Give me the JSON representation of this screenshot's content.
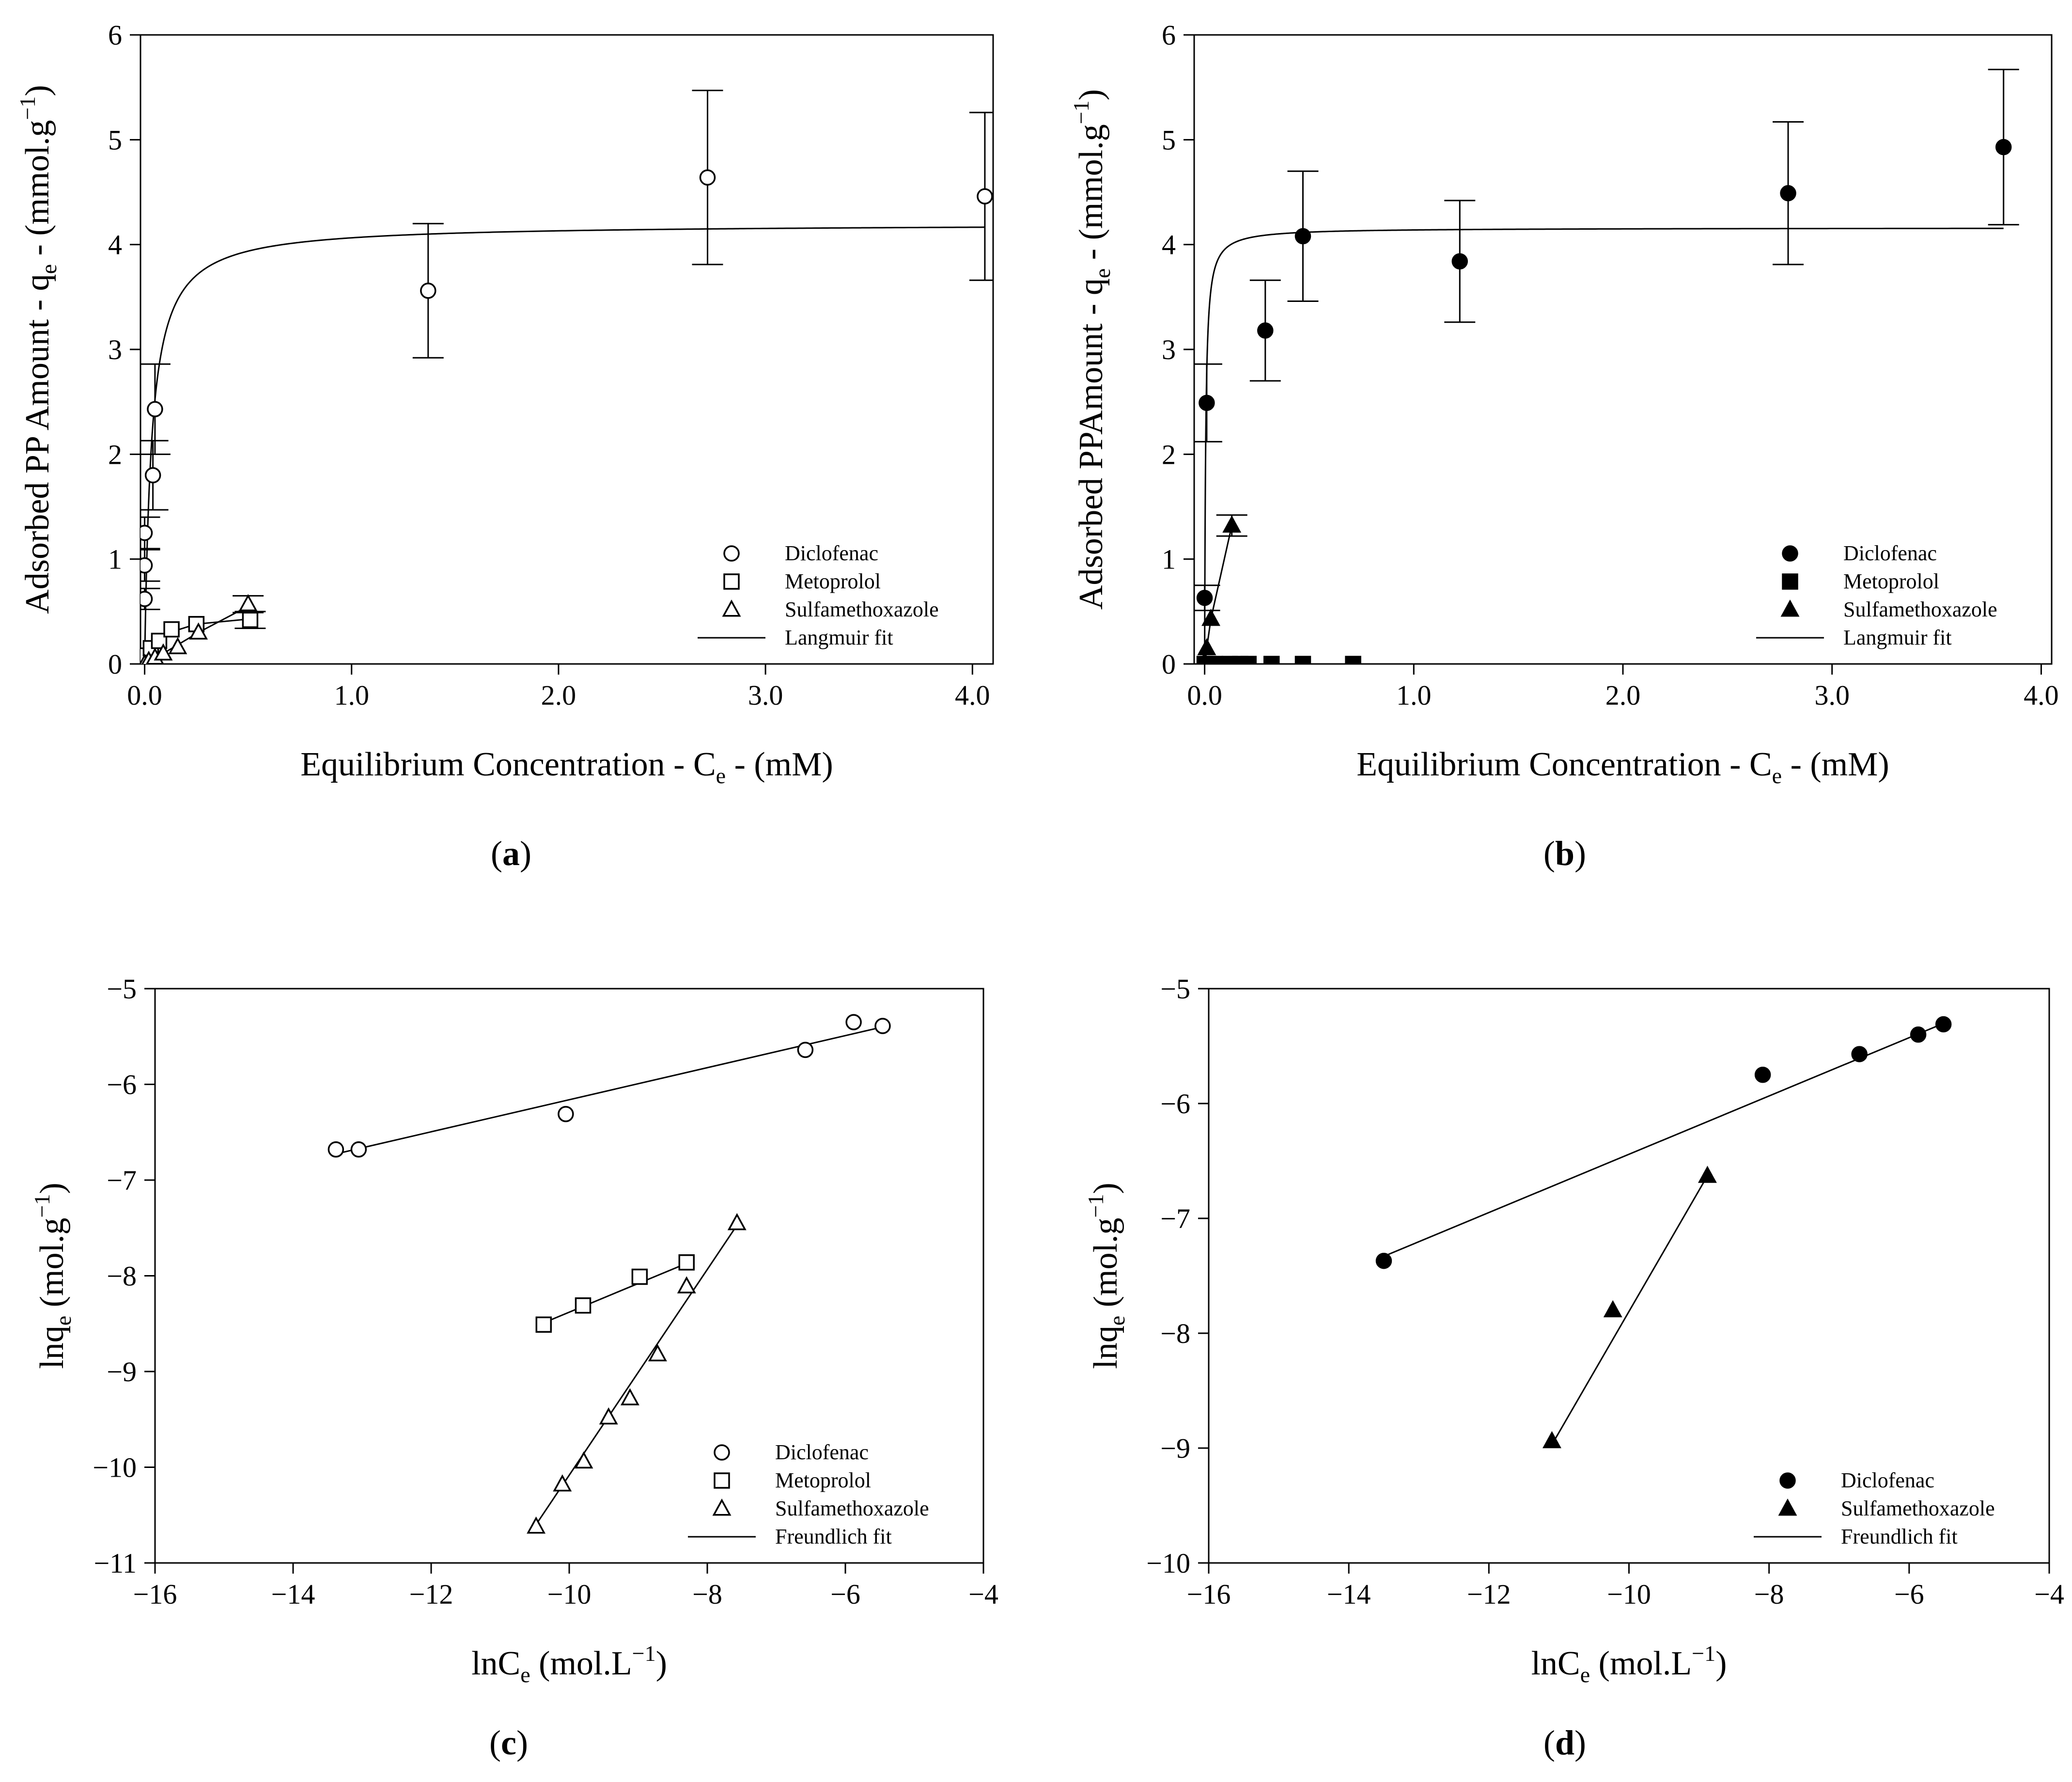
{
  "chart_data": [
    {
      "panel_label": "(a)",
      "type": "scatter",
      "xlabel": "Equilibrium Concentration - C",
      "xlabel_sub": "e",
      "xlabel_tail": " - (mM)",
      "ylabel": "Adsorbed PP Amount - q",
      "ylabel_sub": "e",
      "ylabel_tail": " - (mmol.g",
      "ylabel_sup": "−1",
      "ylabel_end": ")",
      "xlim": [
        -0.02,
        4.1
      ],
      "ylim": [
        0,
        6
      ],
      "xticks": [
        0.0,
        1.0,
        2.0,
        3.0,
        4.0
      ],
      "xtick_labels": [
        "0.0",
        "1.0",
        "2.0",
        "3.0",
        "4.0"
      ],
      "yticks": [
        0,
        1,
        2,
        3,
        4,
        5,
        6
      ],
      "ytick_labels": [
        "0",
        "1",
        "2",
        "3",
        "4",
        "5",
        "6"
      ],
      "legend_position": "bottom-right",
      "series": [
        {
          "name": "Diclofenac",
          "marker": "circle-open",
          "x": [
            0.0,
            0.0,
            0.0,
            0.04,
            0.05,
            1.37,
            2.72,
            4.06
          ],
          "y": [
            0.62,
            0.94,
            1.25,
            1.8,
            2.43,
            3.56,
            4.64,
            4.46
          ],
          "err": [
            0.1,
            0.15,
            0.15,
            0.33,
            0.43,
            0.64,
            0.83,
            0.8
          ]
        },
        {
          "name": "Metoprolol",
          "marker": "square-open",
          "x": [
            0.0,
            0.01,
            0.03,
            0.07,
            0.13,
            0.25,
            0.51
          ],
          "y": [
            0.02,
            0.08,
            0.15,
            0.22,
            0.33,
            0.38,
            0.42
          ],
          "err": [
            0,
            0,
            0,
            0,
            0,
            0,
            0.08
          ]
        },
        {
          "name": "Sulfamethoxazole",
          "marker": "triangle-open",
          "x": [
            0.0,
            0.02,
            0.05,
            0.09,
            0.16,
            0.26,
            0.5
          ],
          "y": [
            0.0,
            0.03,
            0.06,
            0.1,
            0.16,
            0.3,
            0.57
          ],
          "err": [
            0,
            0,
            0,
            0,
            0,
            0,
            0.08
          ]
        },
        {
          "name": "Langmuir fit",
          "marker": "line",
          "fit": "langmuir",
          "qmax": 4.2,
          "K": 30,
          "xmax": 4.06
        },
        {
          "name": "",
          "marker": "line",
          "fit": "polyline",
          "x": [
            0.0,
            0.07,
            0.25,
            0.51
          ],
          "y": [
            0.05,
            0.27,
            0.38,
            0.43
          ]
        },
        {
          "name": "",
          "marker": "line",
          "fit": "polyline",
          "x": [
            0.0,
            0.09,
            0.26,
            0.5
          ],
          "y": [
            0.0,
            0.1,
            0.3,
            0.55
          ]
        }
      ]
    },
    {
      "panel_label": "(b)",
      "type": "scatter",
      "xlabel": "Equilibrium Concentration - C",
      "xlabel_sub": "e",
      "xlabel_tail": " - (mM)",
      "ylabel": "Adsorbed PPAmount - q",
      "ylabel_sub": "e",
      "ylabel_tail": " - (mmol.g",
      "ylabel_sup": "−1",
      "ylabel_end": ")",
      "xlim": [
        -0.05,
        4.05
      ],
      "ylim": [
        0,
        6
      ],
      "xticks": [
        0.0,
        1.0,
        2.0,
        3.0,
        4.0
      ],
      "xtick_labels": [
        "0.0",
        "1.0",
        "2.0",
        "3.0",
        "4.0"
      ],
      "yticks": [
        0,
        1,
        2,
        3,
        4,
        5,
        6
      ],
      "ytick_labels": [
        "0",
        "1",
        "2",
        "3",
        "4",
        "5",
        "6"
      ],
      "legend_position": "bottom-right",
      "series": [
        {
          "name": "Diclofenac",
          "marker": "circle-filled",
          "x": [
            0.0,
            0.01,
            0.29,
            0.47,
            1.22,
            2.79,
            3.82
          ],
          "y": [
            0.63,
            2.49,
            3.18,
            4.08,
            3.84,
            4.49,
            4.93
          ],
          "err": [
            0.12,
            0.37,
            0.48,
            0.62,
            0.58,
            0.68,
            0.74
          ]
        },
        {
          "name": "Metoprolol",
          "marker": "square-filled",
          "x": [
            0.0,
            0.02,
            0.05,
            0.12,
            0.17,
            0.21,
            0.32,
            0.47,
            0.71
          ],
          "y": [
            0.0,
            0.0,
            0.0,
            0.0,
            0.0,
            0.0,
            0.0,
            0.0,
            0.0
          ],
          "err": [
            0,
            0,
            0,
            0,
            0,
            0,
            0,
            0,
            0
          ]
        },
        {
          "name": "Sulfamethoxazole",
          "marker": "triangle-filled",
          "x": [
            0.0,
            0.01,
            0.03,
            0.13
          ],
          "y": [
            0.02,
            0.15,
            0.43,
            1.32
          ],
          "err": [
            0,
            0,
            0,
            0.1
          ]
        },
        {
          "name": "Langmuir fit",
          "marker": "line",
          "fit": "langmuir",
          "qmax": 4.16,
          "K": 200,
          "xmax": 3.82
        },
        {
          "name": "",
          "marker": "line",
          "fit": "polyline",
          "x": [
            0.0,
            0.01,
            0.03,
            0.13
          ],
          "y": [
            0.02,
            0.15,
            0.43,
            1.32
          ]
        }
      ]
    },
    {
      "panel_label": "(c)",
      "type": "scatter",
      "xlabel": "lnC",
      "xlabel_sub": "e",
      "xlabel_tail": " (mol.L",
      "xlabel_sup": "−1",
      "xlabel_end": ")",
      "ylabel": "lnq",
      "ylabel_sub": "e",
      "ylabel_tail": " (mol.g",
      "ylabel_sup": "−1",
      "ylabel_end": ")",
      "xlim": [
        -16,
        -4
      ],
      "ylim": [
        -11,
        -5
      ],
      "xticks": [
        -16,
        -14,
        -12,
        -10,
        -8,
        -6,
        -4
      ],
      "xtick_labels": [
        "−16",
        "−14",
        "−12",
        "−10",
        "−8",
        "−6",
        "−4"
      ],
      "yticks": [
        -11,
        -10,
        -9,
        -8,
        -7,
        -6,
        -5
      ],
      "ytick_labels": [
        "−11",
        "−10",
        "−9",
        "−8",
        "−7",
        "−6",
        "−5"
      ],
      "legend_position": "bottom-right",
      "series": [
        {
          "name": "Diclofenac",
          "marker": "circle-open",
          "x": [
            -13.38,
            -13.05,
            -10.05,
            -6.58,
            -5.88,
            -5.46
          ],
          "y": [
            -6.68,
            -6.68,
            -6.31,
            -5.64,
            -5.35,
            -5.39
          ]
        },
        {
          "name": "Metoprolol",
          "marker": "square-open",
          "x": [
            -10.37,
            -9.8,
            -8.98,
            -8.3
          ],
          "y": [
            -8.51,
            -8.31,
            -8.01,
            -7.86
          ]
        },
        {
          "name": "Sulfamethoxazole",
          "marker": "triangle-open",
          "x": [
            -10.48,
            -10.1,
            -9.79,
            -9.43,
            -9.12,
            -8.72,
            -8.3,
            -7.57
          ],
          "y": [
            -10.62,
            -10.18,
            -9.94,
            -9.48,
            -9.28,
            -8.82,
            -8.11,
            -7.45
          ]
        },
        {
          "name": "Freundlich fit",
          "marker": "line",
          "fit": "line",
          "x": [
            -13.4,
            -5.4
          ],
          "y": [
            -6.73,
            -5.39
          ]
        },
        {
          "name": "",
          "marker": "line",
          "fit": "line",
          "x": [
            -10.4,
            -8.3
          ],
          "y": [
            -8.5,
            -7.87
          ]
        },
        {
          "name": "",
          "marker": "line",
          "fit": "line",
          "x": [
            -10.5,
            -7.55
          ],
          "y": [
            -10.62,
            -7.45
          ]
        }
      ]
    },
    {
      "panel_label": "(d)",
      "type": "scatter",
      "xlabel": "lnC",
      "xlabel_sub": "e",
      "xlabel_tail": " (mol.L",
      "xlabel_sup": "−1",
      "xlabel_end": ")",
      "ylabel": "lnq",
      "ylabel_sub": "e",
      "ylabel_tail": " (mol.g",
      "ylabel_sup": "−1",
      "ylabel_end": ")",
      "xlim": [
        -16,
        -4
      ],
      "ylim": [
        -10,
        -5
      ],
      "xticks": [
        -16,
        -14,
        -12,
        -10,
        -8,
        -6,
        -4
      ],
      "xtick_labels": [
        "−16",
        "−14",
        "−12",
        "−10",
        "−8",
        "−6",
        "−4"
      ],
      "yticks": [
        -10,
        -9,
        -8,
        -7,
        -6,
        -5
      ],
      "ytick_labels": [
        "−10",
        "−9",
        "−8",
        "−7",
        "−6",
        "−5"
      ],
      "legend_position": "bottom-right",
      "series": [
        {
          "name": "Diclofenac",
          "marker": "circle-filled",
          "x": [
            -13.5,
            -8.09,
            -6.71,
            -5.87,
            -5.51
          ],
          "y": [
            -7.37,
            -5.75,
            -5.57,
            -5.4,
            -5.31
          ]
        },
        {
          "name": "Sulfamethoxazole",
          "marker": "triangle-filled",
          "x": [
            -11.1,
            -10.23,
            -8.88
          ],
          "y": [
            -8.94,
            -7.8,
            -6.63
          ]
        },
        {
          "name": "Freundlich fit",
          "marker": "line",
          "fit": "line",
          "x": [
            -13.5,
            -5.5
          ],
          "y": [
            -7.33,
            -5.3
          ]
        },
        {
          "name": "",
          "marker": "line",
          "fit": "line",
          "x": [
            -11.1,
            -8.88
          ],
          "y": [
            -8.97,
            -6.63
          ]
        }
      ]
    }
  ]
}
